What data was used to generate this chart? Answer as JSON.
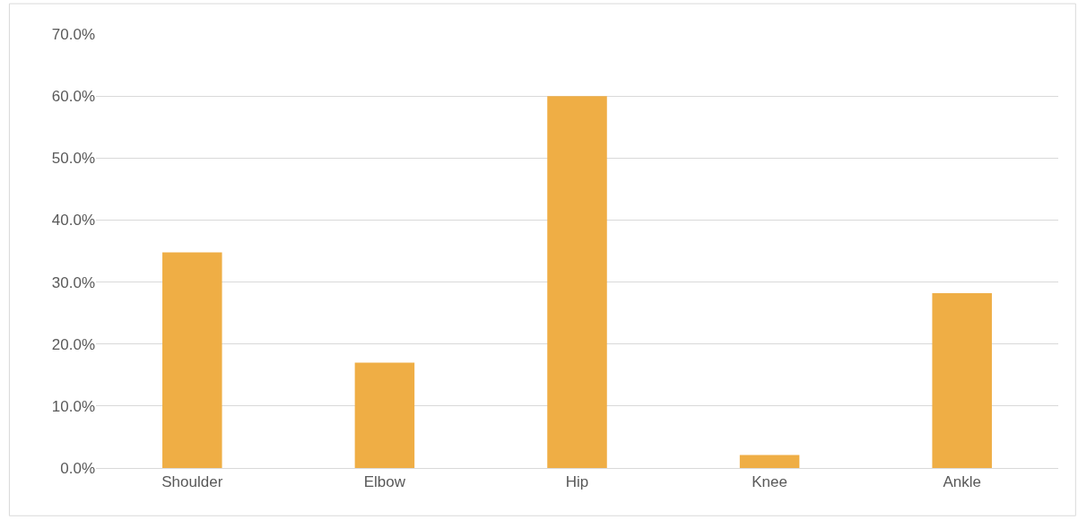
{
  "chart_data": {
    "type": "bar",
    "categories": [
      "Shoulder",
      "Elbow",
      "Hip",
      "Knee",
      "Ankle"
    ],
    "values": [
      34.8,
      17.0,
      60.0,
      2.1,
      28.2
    ],
    "color": "#efae45",
    "ylim": [
      0,
      70
    ],
    "yticks": [
      {
        "value": 0,
        "label": "0.0%"
      },
      {
        "value": 10,
        "label": "10.0%"
      },
      {
        "value": 20,
        "label": "20.0%"
      },
      {
        "value": 30,
        "label": "30.0%"
      },
      {
        "value": 40,
        "label": "40.0%"
      },
      {
        "value": 50,
        "label": "50.0%"
      },
      {
        "value": 60,
        "label": "60.0%"
      },
      {
        "value": 70,
        "label": "70.0%"
      }
    ],
    "grid": "y",
    "legend": false
  }
}
